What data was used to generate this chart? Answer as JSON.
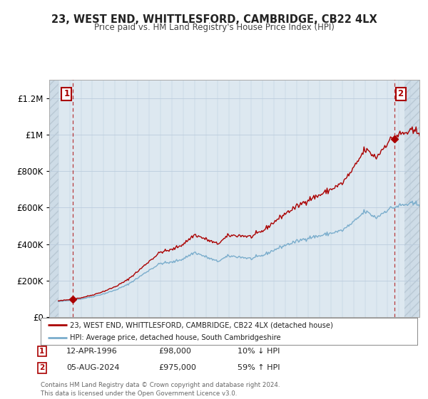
{
  "title": "23, WEST END, WHITTLESFORD, CAMBRIDGE, CB22 4LX",
  "subtitle": "Price paid vs. HM Land Registry's House Price Index (HPI)",
  "background_color": "#ffffff",
  "plot_bg_color": "#dde8f0",
  "grid_color": "#bbccdd",
  "red_line_color": "#aa0000",
  "blue_line_color": "#7aadcc",
  "sale1_year": 1996.28,
  "sale1_price": 98000,
  "sale1_label": "1",
  "sale1_date": "12-APR-1996",
  "sale1_pct": "10% ↓ HPI",
  "sale2_year": 2024.59,
  "sale2_price": 975000,
  "sale2_label": "2",
  "sale2_date": "05-AUG-2024",
  "sale2_pct": "59% ↑ HPI",
  "xmin": 1994.5,
  "xmax": 2026.5,
  "ymin": 0,
  "ymax": 1300000,
  "yticks": [
    0,
    200000,
    400000,
    600000,
    800000,
    1000000,
    1200000
  ],
  "ytick_labels": [
    "£0",
    "£200K",
    "£400K",
    "£600K",
    "£800K",
    "£1M",
    "£1.2M"
  ],
  "legend_label1": "23, WEST END, WHITTLESFORD, CAMBRIDGE, CB22 4LX (detached house)",
  "legend_label2": "HPI: Average price, detached house, South Cambridgeshire",
  "footer": "Contains HM Land Registry data © Crown copyright and database right 2024.\nThis data is licensed under the Open Government Licence v3.0."
}
